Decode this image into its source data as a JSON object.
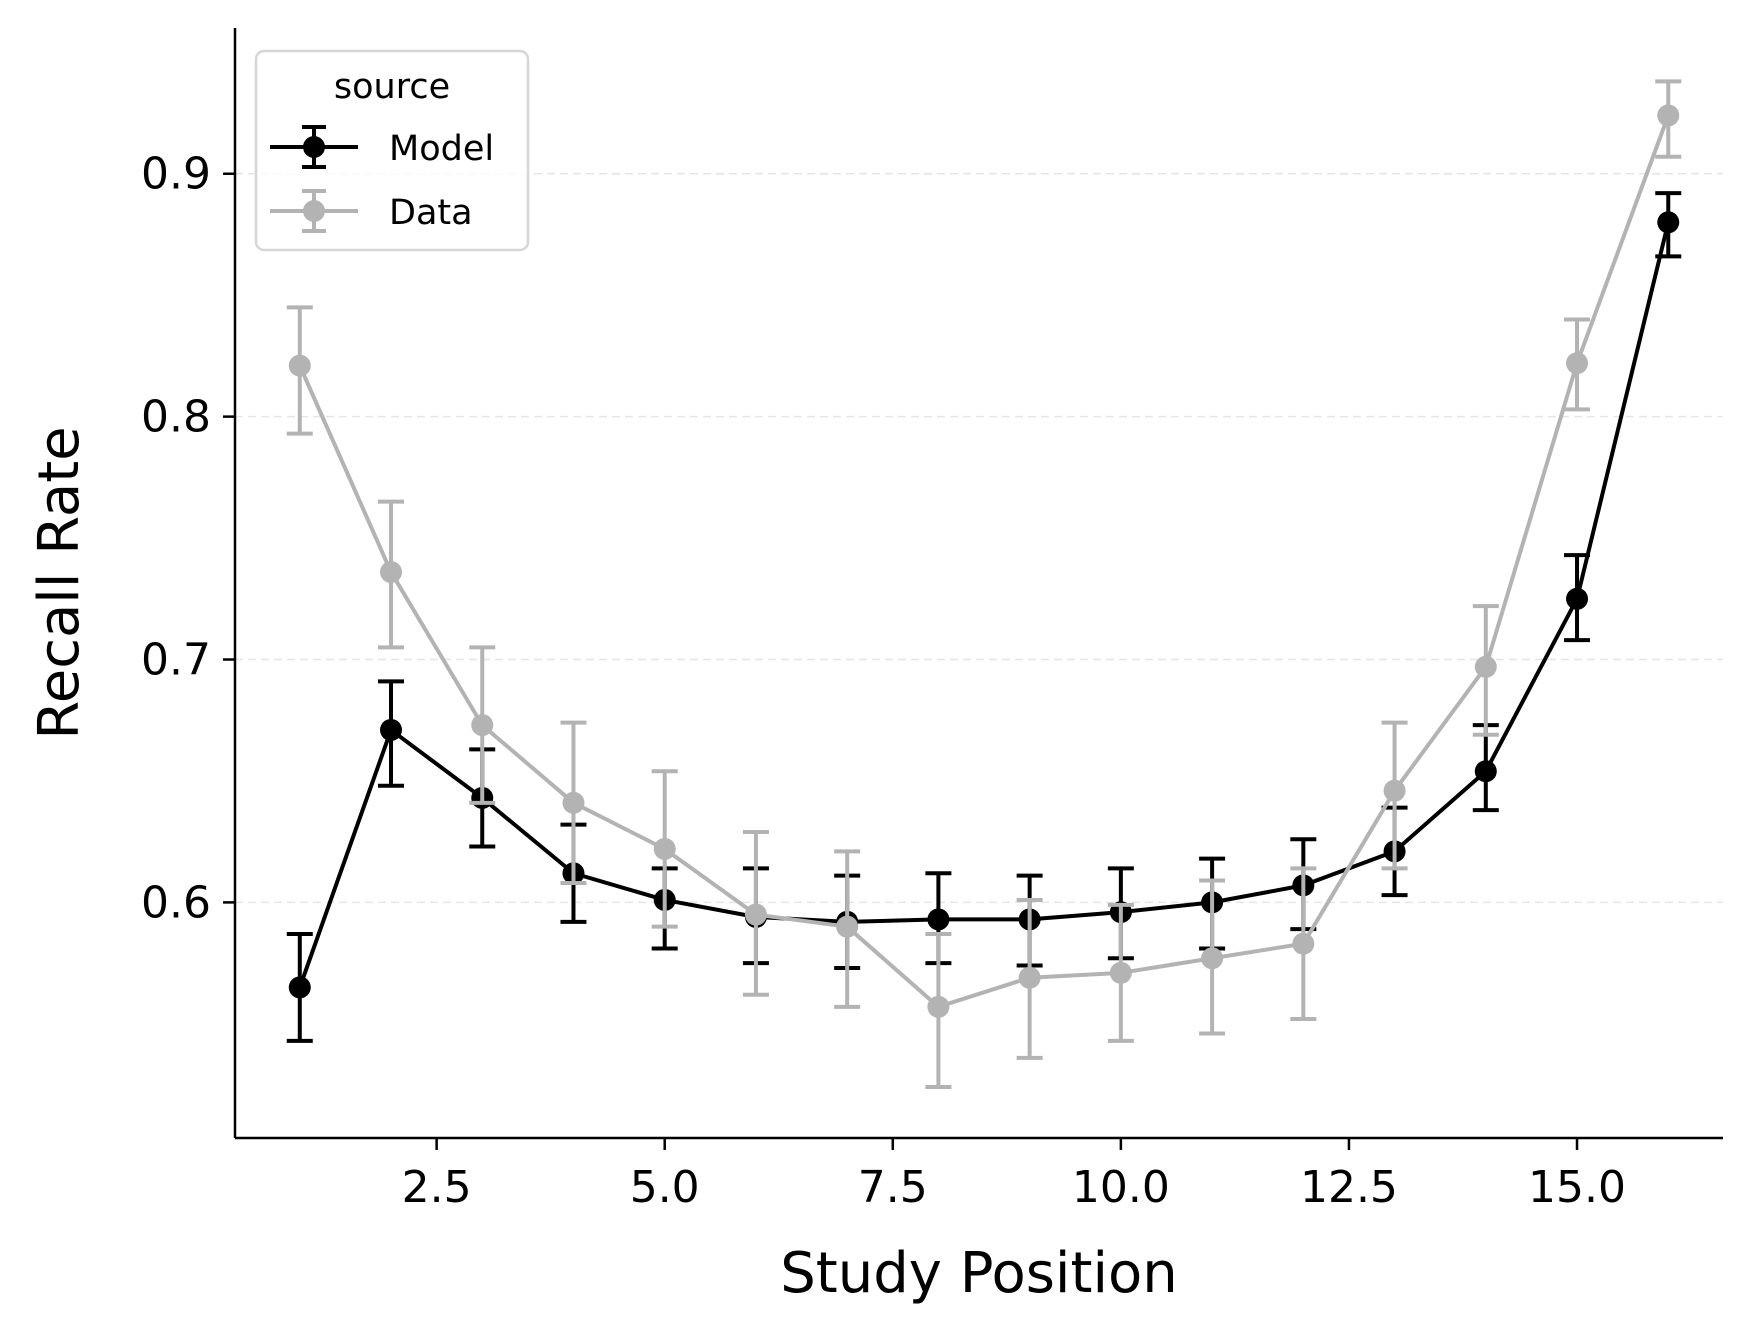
{
  "chart_data": {
    "type": "line",
    "title": "",
    "xlabel": "Study Position",
    "ylabel": "Recall Rate",
    "xlim": [
      0.29,
      16.6
    ],
    "ylim": [
      0.503,
      0.96
    ],
    "xticks": [
      2.5,
      5.0,
      7.5,
      10.0,
      12.5,
      15.0
    ],
    "xtick_labels": [
      "2.5",
      "5.0",
      "7.5",
      "10.0",
      "12.5",
      "15.0"
    ],
    "yticks": [
      0.6,
      0.7,
      0.8,
      0.9
    ],
    "ytick_labels": [
      "0.6",
      "0.7",
      "0.8",
      "0.9"
    ],
    "grid": "horizontal dashed",
    "legend": {
      "title": "source",
      "placement": "top-left"
    },
    "x": [
      1,
      2,
      3,
      4,
      5,
      6,
      7,
      8,
      9,
      10,
      11,
      12,
      13,
      14,
      15,
      16
    ],
    "series": [
      {
        "name": "Model",
        "color": "#000000",
        "values": [
          0.565,
          0.671,
          0.643,
          0.612,
          0.601,
          0.594,
          0.592,
          0.593,
          0.593,
          0.596,
          0.6,
          0.607,
          0.621,
          0.654,
          0.725,
          0.88
        ],
        "err_upper": [
          0.587,
          0.691,
          0.663,
          0.632,
          0.614,
          0.614,
          0.611,
          0.612,
          0.611,
          0.614,
          0.618,
          0.626,
          0.639,
          0.673,
          0.743,
          0.892
        ],
        "err_lower": [
          0.543,
          0.648,
          0.623,
          0.592,
          0.581,
          0.575,
          0.573,
          0.575,
          0.574,
          0.577,
          0.581,
          0.589,
          0.603,
          0.638,
          0.708,
          0.866
        ]
      },
      {
        "name": "Data",
        "color": "#b3b3b3",
        "values": [
          0.821,
          0.736,
          0.673,
          0.641,
          0.622,
          0.595,
          0.59,
          0.557,
          0.569,
          0.571,
          0.577,
          0.583,
          0.646,
          0.697,
          0.822,
          0.924
        ],
        "err_upper": [
          0.845,
          0.765,
          0.705,
          0.674,
          0.654,
          0.629,
          0.621,
          0.587,
          0.601,
          0.599,
          0.609,
          0.614,
          0.674,
          0.722,
          0.84,
          0.938
        ],
        "err_lower": [
          0.793,
          0.705,
          0.641,
          0.608,
          0.59,
          0.562,
          0.557,
          0.524,
          0.536,
          0.543,
          0.546,
          0.552,
          0.614,
          0.669,
          0.803,
          0.907
        ]
      }
    ]
  }
}
